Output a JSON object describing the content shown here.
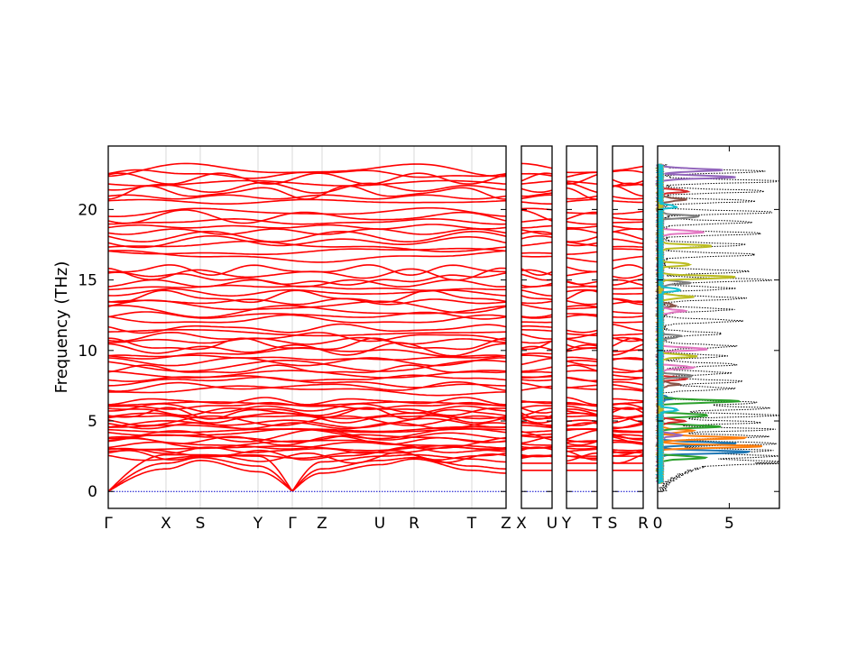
{
  "chart_data": {
    "type": "line",
    "title": "",
    "ylabel": "Frequency (THz)",
    "ylim": [
      -1.2,
      24.5
    ],
    "yticks": [
      0,
      5,
      10,
      15,
      20
    ],
    "grid": false,
    "band_color": "#ff0000",
    "zero_line_color": "#0000cc",
    "dos_total_color": "#000000",
    "panels": [
      {
        "name": "main",
        "segments": [
          {
            "from": "Γ",
            "to": "X",
            "length": 0.64
          },
          {
            "from": "X",
            "to": "S",
            "length": 0.38
          },
          {
            "from": "S",
            "to": "Y",
            "length": 0.64
          },
          {
            "from": "Y",
            "to": "Γ",
            "length": 0.38
          },
          {
            "from": "Γ",
            "to": "Z",
            "length": 0.33
          },
          {
            "from": "Z",
            "to": "U",
            "length": 0.64
          },
          {
            "from": "U",
            "to": "R",
            "length": 0.38
          },
          {
            "from": "R",
            "to": "T",
            "length": 0.64
          },
          {
            "from": "T",
            "to": "Z",
            "length": 0.38
          }
        ],
        "xticks": [
          "Γ",
          "X",
          "S",
          "Y",
          "Γ",
          "Z",
          "U",
          "R",
          "T",
          "Z"
        ]
      },
      {
        "name": "X-U",
        "segments": [
          {
            "from": "X",
            "to": "U",
            "length": 0.33
          }
        ],
        "xticks": [
          "X",
          "U"
        ]
      },
      {
        "name": "Y-T",
        "segments": [
          {
            "from": "Y",
            "to": "T",
            "length": 0.33
          }
        ],
        "xticks": [
          "Y",
          "T"
        ]
      },
      {
        "name": "S-R",
        "segments": [
          {
            "from": "S",
            "to": "R",
            "length": 0.33
          }
        ],
        "xticks": [
          "S",
          "R"
        ]
      }
    ],
    "acoustic_branches": [
      {
        "gamma": 0,
        "X": 1.6,
        "S": 2.2,
        "Y": 1.4,
        "Z": 1.3,
        "U": 1.9,
        "R": 2.3,
        "T": 1.5
      },
      {
        "gamma": 0,
        "X": 2.0,
        "S": 2.4,
        "Y": 1.8,
        "Z": 1.6,
        "U": 2.2,
        "R": 2.4,
        "T": 1.8
      },
      {
        "gamma": 0,
        "X": 2.6,
        "S": 2.6,
        "Y": 2.5,
        "Z": 2.1,
        "U": 2.5,
        "R": 2.6,
        "T": 2.3
      }
    ],
    "optical_band_groups": [
      {
        "range": [
          2.3,
          6.5
        ],
        "count": 24
      },
      {
        "range": [
          7.0,
          11.7
        ],
        "count": 16
      },
      {
        "range": [
          12.0,
          15.9
        ],
        "count": 12
      },
      {
        "range": [
          16.5,
          20.0
        ],
        "count": 10
      },
      {
        "range": [
          20.4,
          23.0
        ],
        "count": 8
      }
    ],
    "dos": {
      "xlim": [
        0,
        8.5
      ],
      "xticks": [
        0,
        5
      ],
      "total_peaks": [
        [
          2.1,
          8.4
        ],
        [
          2.5,
          7.9
        ],
        [
          2.9,
          7.6
        ],
        [
          3.4,
          8.0
        ],
        [
          3.9,
          7.2
        ],
        [
          4.4,
          7.8
        ],
        [
          4.9,
          6.9
        ],
        [
          5.4,
          8.2
        ],
        [
          5.9,
          7.4
        ],
        [
          6.3,
          6.6
        ],
        [
          7.3,
          4.9
        ],
        [
          7.8,
          5.6
        ],
        [
          8.4,
          4.6
        ],
        [
          9.0,
          5.2
        ],
        [
          9.6,
          4.4
        ],
        [
          10.3,
          5.0
        ],
        [
          11.2,
          4.2
        ],
        [
          12.1,
          5.4
        ],
        [
          12.9,
          4.8
        ],
        [
          13.7,
          5.7
        ],
        [
          14.4,
          4.9
        ],
        [
          15.0,
          7.6
        ],
        [
          15.6,
          6.0
        ],
        [
          16.8,
          6.6
        ],
        [
          17.5,
          5.8
        ],
        [
          18.3,
          7.0
        ],
        [
          19.1,
          6.2
        ],
        [
          19.8,
          7.8
        ],
        [
          20.6,
          6.4
        ],
        [
          21.3,
          7.2
        ],
        [
          22.0,
          8.3
        ],
        [
          22.7,
          7.1
        ]
      ],
      "projected_colors": [
        "#1f77b4",
        "#ff7f0e",
        "#2ca02c",
        "#d62728",
        "#9467bd",
        "#8c564b",
        "#e377c2",
        "#7f7f7f",
        "#bcbd22",
        "#17becf"
      ],
      "projected_peaks": [
        {
          "color": "#1f77b4",
          "peaks": [
            [
              2.8,
              6.3
            ],
            [
              3.4,
              5.2
            ],
            [
              6.6,
              0.8
            ]
          ]
        },
        {
          "color": "#ff7f0e",
          "peaks": [
            [
              3.2,
              7.0
            ],
            [
              3.8,
              5.8
            ],
            [
              4.3,
              2.2
            ]
          ]
        },
        {
          "color": "#2ca02c",
          "peaks": [
            [
              2.4,
              3.1
            ],
            [
              4.6,
              4.1
            ],
            [
              5.4,
              3.4
            ],
            [
              6.4,
              5.4
            ]
          ]
        },
        {
          "color": "#d62728",
          "peaks": [
            [
              5.0,
              1.6
            ],
            [
              8.0,
              1.8
            ],
            [
              21.3,
              1.9
            ]
          ]
        },
        {
          "color": "#9467bd",
          "peaks": [
            [
              22.3,
              5.2
            ],
            [
              22.8,
              4.2
            ],
            [
              4.0,
              1.4
            ]
          ]
        },
        {
          "color": "#8c564b",
          "peaks": [
            [
              7.6,
              1.2
            ],
            [
              20.7,
              1.7
            ],
            [
              13.2,
              1.0
            ]
          ]
        },
        {
          "color": "#e377c2",
          "peaks": [
            [
              10.1,
              3.3
            ],
            [
              18.4,
              3.0
            ],
            [
              12.8,
              1.6
            ],
            [
              8.8,
              2.3
            ]
          ]
        },
        {
          "color": "#7f7f7f",
          "peaks": [
            [
              8.2,
              2.3
            ],
            [
              14.8,
              2.0
            ],
            [
              19.5,
              2.7
            ],
            [
              11.0,
              1.4
            ]
          ]
        },
        {
          "color": "#bcbd22",
          "peaks": [
            [
              15.2,
              5.3
            ],
            [
              17.4,
              3.7
            ],
            [
              9.6,
              2.5
            ],
            [
              13.8,
              2.2
            ],
            [
              16.1,
              2.1
            ]
          ]
        },
        {
          "color": "#17becf",
          "peaks": [
            [
              14.3,
              1.4
            ],
            [
              5.8,
              1.2
            ],
            [
              20.2,
              1.1
            ]
          ]
        }
      ]
    }
  }
}
